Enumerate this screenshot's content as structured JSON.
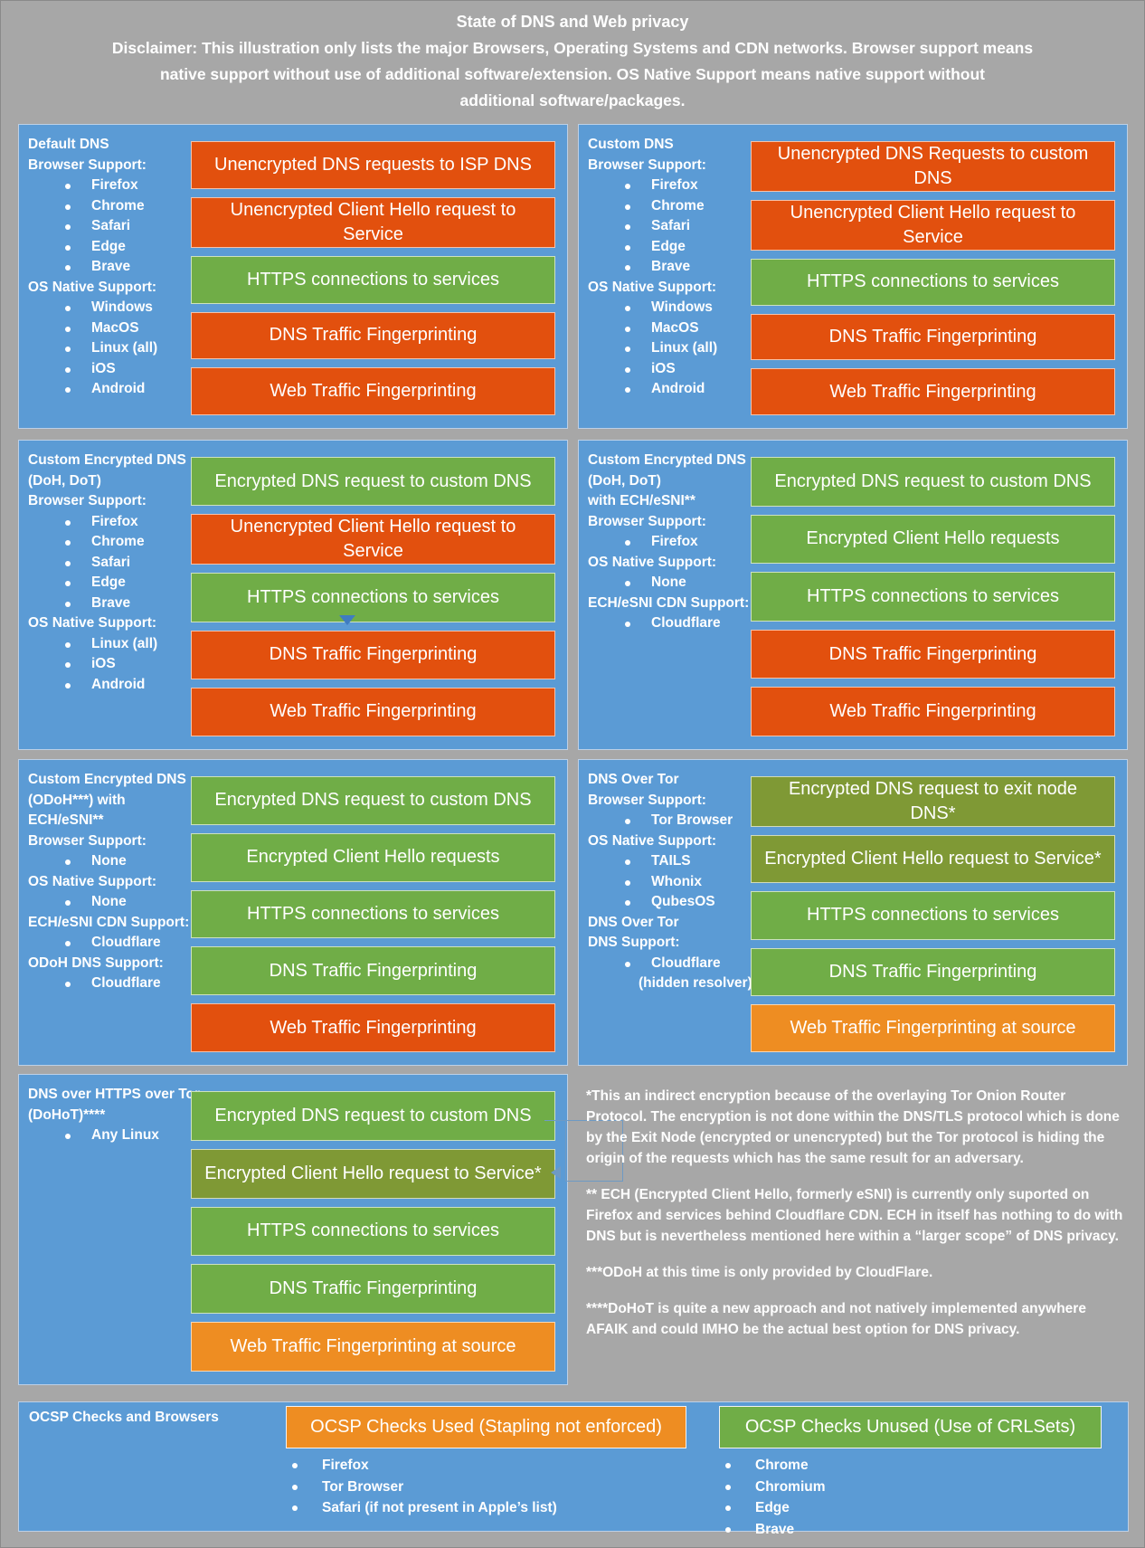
{
  "header": {
    "title": "State of DNS and Web privacy",
    "disclaimer_lines": [
      "Disclaimer: This illustration only lists the major Browsers, Operating Systems and CDN networks. Browser support means",
      "native support without use of additional software/extension. OS Native Support means native support without",
      "additional software/packages."
    ]
  },
  "colors": {
    "background_gray": "#a7a7a7",
    "panel_blue": "#5b9bd5",
    "bad_red_orange": "#e2500e",
    "good_green": "#70ad47",
    "partial_olive": "#7f9935",
    "warn_orange": "#ee8d22",
    "text_white": "#ffffff"
  },
  "panels": [
    {
      "id": "default-dns",
      "side": [
        {
          "t": "h",
          "text": "Default DNS"
        },
        {
          "t": "h",
          "text": "Browser Support:"
        },
        {
          "t": "b",
          "text": "Firefox"
        },
        {
          "t": "b",
          "text": "Chrome"
        },
        {
          "t": "b",
          "text": "Safari"
        },
        {
          "t": "b",
          "text": "Edge"
        },
        {
          "t": "b",
          "text": "Brave"
        },
        {
          "t": "h",
          "text": "OS Native Support:"
        },
        {
          "t": "b",
          "text": "Windows"
        },
        {
          "t": "b",
          "text": "MacOS"
        },
        {
          "t": "b",
          "text": "Linux (all)"
        },
        {
          "t": "b",
          "text": "iOS"
        },
        {
          "t": "b",
          "text": "Android"
        }
      ],
      "bars": [
        {
          "label": "Unencrypted DNS requests to ISP DNS",
          "color": "red"
        },
        {
          "label": "Unencrypted Client Hello request to Service",
          "color": "red"
        },
        {
          "label": "HTTPS connections to services",
          "color": "green"
        },
        {
          "label": "DNS Traffic Fingerprinting",
          "color": "red"
        },
        {
          "label": "Web Traffic Fingerprinting",
          "color": "red"
        }
      ]
    },
    {
      "id": "custom-dns",
      "side": [
        {
          "t": "h",
          "text": "Custom DNS"
        },
        {
          "t": "h",
          "text": "Browser Support:"
        },
        {
          "t": "b",
          "text": "Firefox"
        },
        {
          "t": "b",
          "text": "Chrome"
        },
        {
          "t": "b",
          "text": "Safari"
        },
        {
          "t": "b",
          "text": "Edge"
        },
        {
          "t": "b",
          "text": "Brave"
        },
        {
          "t": "h",
          "text": "OS Native Support:"
        },
        {
          "t": "b",
          "text": "Windows"
        },
        {
          "t": "b",
          "text": "MacOS"
        },
        {
          "t": "b",
          "text": "Linux (all)"
        },
        {
          "t": "b",
          "text": "iOS"
        },
        {
          "t": "b",
          "text": "Android"
        }
      ],
      "bars": [
        {
          "label": "Unencrypted DNS Requests to custom DNS",
          "color": "red"
        },
        {
          "label": "Unencrypted Client Hello request to Service",
          "color": "red"
        },
        {
          "label": "HTTPS connections to services",
          "color": "green"
        },
        {
          "label": "DNS Traffic Fingerprinting",
          "color": "red"
        },
        {
          "label": "Web Traffic Fingerprinting",
          "color": "red"
        }
      ]
    },
    {
      "id": "custom-encrypted-dns-doh-dot",
      "side": [
        {
          "t": "h",
          "text": "Custom Encrypted DNS"
        },
        {
          "t": "h",
          "text": "(DoH, DoT)"
        },
        {
          "t": "h",
          "text": "Browser Support:"
        },
        {
          "t": "b",
          "text": "Firefox"
        },
        {
          "t": "b",
          "text": "Chrome"
        },
        {
          "t": "b",
          "text": "Safari"
        },
        {
          "t": "b",
          "text": "Edge"
        },
        {
          "t": "b",
          "text": "Brave"
        },
        {
          "t": "h",
          "text": "OS Native Support:"
        },
        {
          "t": "b",
          "text": "Linux (all)"
        },
        {
          "t": "b",
          "text": "iOS"
        },
        {
          "t": "b",
          "text": "Android"
        }
      ],
      "bars": [
        {
          "label": "Encrypted DNS request to custom DNS",
          "color": "green"
        },
        {
          "label": "Unencrypted Client Hello request to Service",
          "color": "red"
        },
        {
          "label": "HTTPS connections to services",
          "color": "green"
        },
        {
          "label": "DNS Traffic Fingerprinting",
          "color": "red"
        },
        {
          "label": "Web Traffic Fingerprinting",
          "color": "red"
        }
      ]
    },
    {
      "id": "custom-encrypted-dns-doh-dot-ech-esni",
      "side": [
        {
          "t": "h",
          "text": "Custom Encrypted DNS"
        },
        {
          "t": "h",
          "text": "(DoH, DoT)"
        },
        {
          "t": "h",
          "text": "with ECH/eSNI**"
        },
        {
          "t": "h",
          "text": "Browser Support:"
        },
        {
          "t": "b",
          "text": "Firefox"
        },
        {
          "t": "h",
          "text": "OS Native Support:"
        },
        {
          "t": "b",
          "text": "None"
        },
        {
          "t": "h",
          "text": "ECH/eSNI CDN Support:"
        },
        {
          "t": "b",
          "text": "Cloudflare"
        }
      ],
      "bars": [
        {
          "label": "Encrypted DNS request to custom DNS",
          "color": "green"
        },
        {
          "label": "Encrypted Client Hello requests",
          "color": "green"
        },
        {
          "label": "HTTPS connections to services",
          "color": "green"
        },
        {
          "label": "DNS Traffic Fingerprinting",
          "color": "red"
        },
        {
          "label": "Web Traffic Fingerprinting",
          "color": "red"
        }
      ]
    },
    {
      "id": "custom-encrypted-dns-odoh-ech-esni",
      "side": [
        {
          "t": "h",
          "text": "Custom Encrypted DNS"
        },
        {
          "t": "h",
          "text": "(ODoH***) with"
        },
        {
          "t": "h",
          "text": "ECH/eSNI**"
        },
        {
          "t": "h",
          "text": "Browser Support:"
        },
        {
          "t": "b",
          "text": "None"
        },
        {
          "t": "h",
          "text": "OS Native Support:"
        },
        {
          "t": "b",
          "text": "None"
        },
        {
          "t": "h",
          "text": "ECH/eSNI CDN Support:"
        },
        {
          "t": "b",
          "text": "Cloudflare"
        },
        {
          "t": "h",
          "text": "ODoH DNS Support:"
        },
        {
          "t": "b",
          "text": "Cloudflare"
        }
      ],
      "bars": [
        {
          "label": "Encrypted DNS request to custom DNS",
          "color": "green"
        },
        {
          "label": "Encrypted Client Hello requests",
          "color": "green"
        },
        {
          "label": "HTTPS connections to services",
          "color": "green"
        },
        {
          "label": "DNS Traffic Fingerprinting",
          "color": "green"
        },
        {
          "label": "Web Traffic Fingerprinting",
          "color": "red"
        }
      ]
    },
    {
      "id": "dns-over-tor",
      "side": [
        {
          "t": "h",
          "text": "DNS Over Tor"
        },
        {
          "t": "h",
          "text": "Browser Support:"
        },
        {
          "t": "b",
          "text": "Tor Browser"
        },
        {
          "t": "h",
          "text": "OS Native Support:"
        },
        {
          "t": "b",
          "text": "TAILS"
        },
        {
          "t": "b",
          "text": "Whonix"
        },
        {
          "t": "b",
          "text": "QubesOS"
        },
        {
          "t": "h",
          "text": "DNS Over Tor"
        },
        {
          "t": "h",
          "text": "DNS Support:"
        },
        {
          "t": "b",
          "text": "Cloudflare"
        },
        {
          "t": "c",
          "text": "(hidden resolver)"
        }
      ],
      "bars": [
        {
          "label": "Encrypted DNS request to exit node DNS*",
          "color": "olive"
        },
        {
          "label": "Encrypted Client Hello request to Service*",
          "color": "olive"
        },
        {
          "label": "HTTPS connections to services",
          "color": "green"
        },
        {
          "label": "DNS Traffic Fingerprinting",
          "color": "green"
        },
        {
          "label": "Web Traffic Fingerprinting at source",
          "color": "orange"
        }
      ]
    },
    {
      "id": "dns-over-https-over-tor",
      "side": [
        {
          "t": "h",
          "text": "DNS over HTTPS over Tor"
        },
        {
          "t": "h",
          "text": "(DoHoT)****"
        },
        {
          "t": "b",
          "text": "Any Linux"
        }
      ],
      "bars": [
        {
          "label": "Encrypted DNS request to custom DNS",
          "color": "green"
        },
        {
          "label": "Encrypted Client Hello request to Service*",
          "color": "olive"
        },
        {
          "label": "HTTPS connections to services",
          "color": "green"
        },
        {
          "label": "DNS Traffic Fingerprinting",
          "color": "green"
        },
        {
          "label": "Web Traffic Fingerprinting at source",
          "color": "orange"
        }
      ]
    }
  ],
  "footnotes": [
    "*This an indirect encryption because of the overlaying Tor Onion Router Protocol. The encryption is not done within the DNS/TLS protocol which is done by the Exit Node (encrypted or unencrypted) but the Tor protocol is hiding the origin of the requests which has the same result for an adversary.",
    "** ECH (Encrypted Client Hello, formerly eSNI) is currently only suported on Firefox and services behind Cloudflare CDN. ECH in itself has nothing to do with DNS but is nevertheless mentioned here within a “larger scope” of DNS privacy.",
    "***ODoH at this time is only provided by CloudFlare.",
    "****DoHoT is quite a new approach and not natively implemented anywhere AFAIK and could IMHO be the actual best option for DNS privacy."
  ],
  "ocsp": {
    "label": "OCSP Checks and Browsers",
    "groups": [
      {
        "box": "OCSP Checks Used (Stapling not enforced)",
        "color": "orange",
        "items": [
          "Firefox",
          "Tor Browser",
          "Safari (if not present in Apple’s list)"
        ]
      },
      {
        "box": "OCSP Checks Unused (Use of CRLSets)",
        "color": "green",
        "items": [
          "Chrome",
          "Chromium",
          "Edge",
          "Brave"
        ]
      }
    ]
  }
}
